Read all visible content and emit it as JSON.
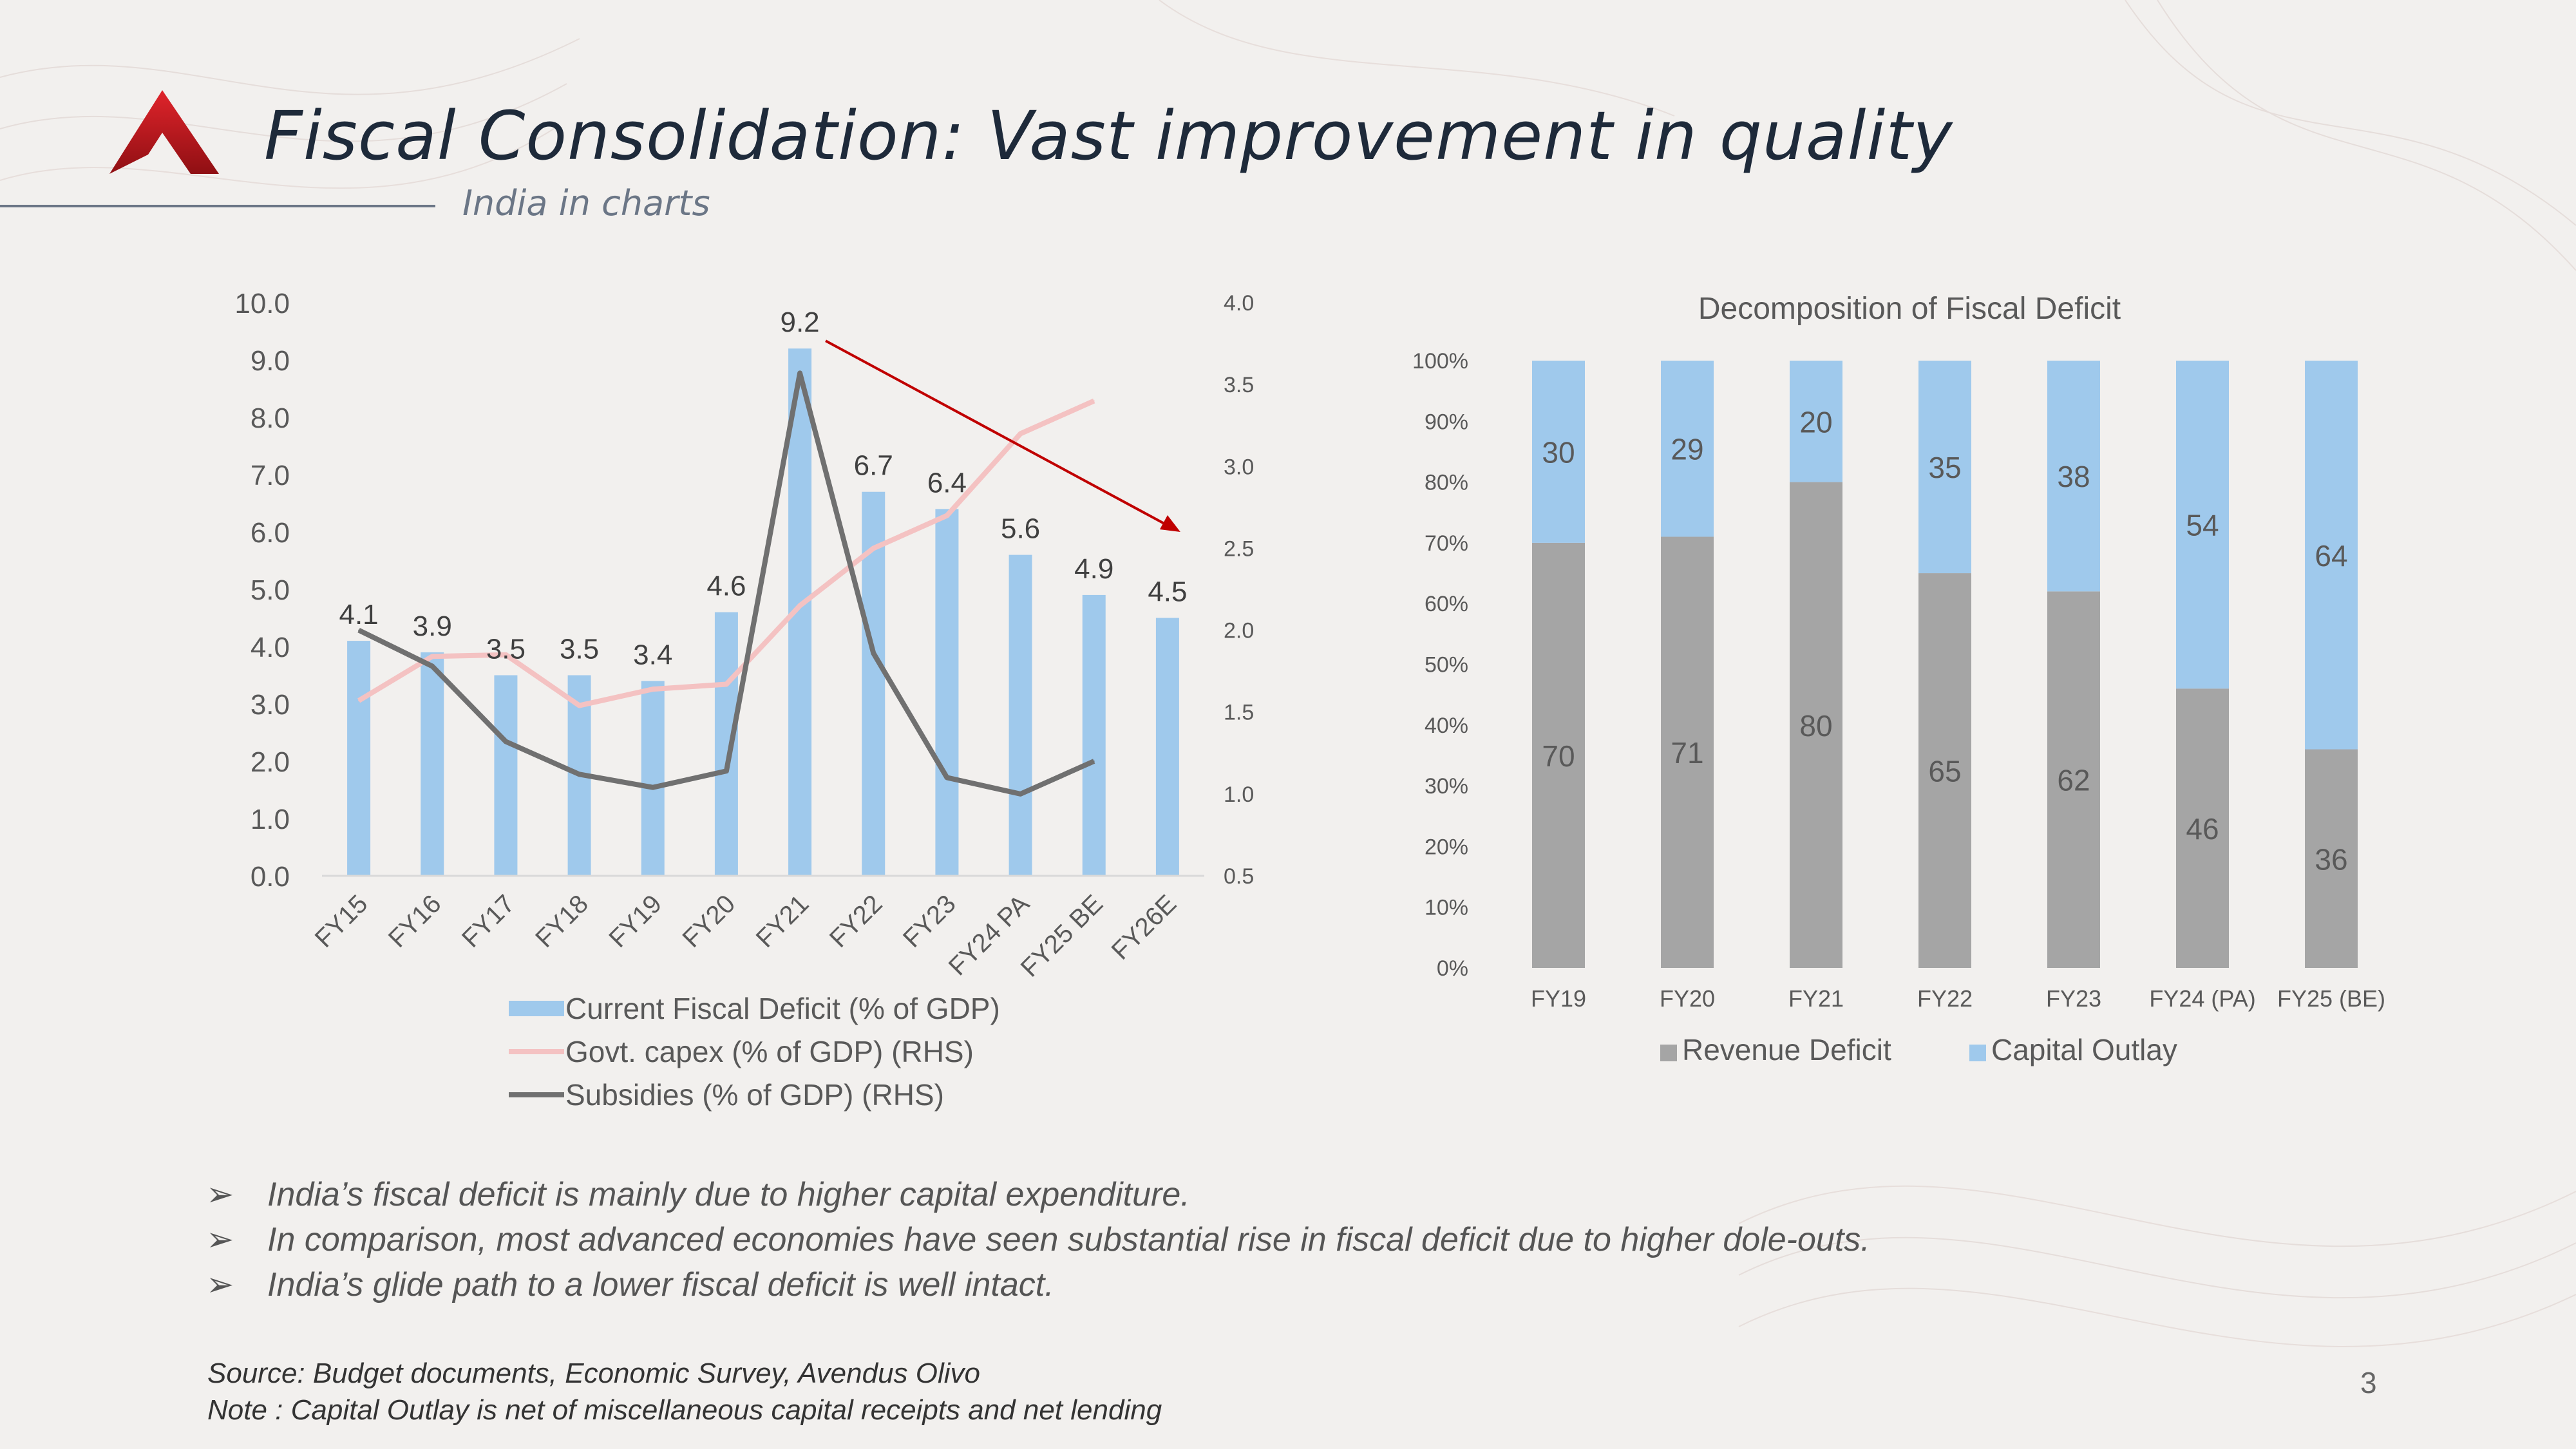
{
  "header": {
    "title": "Fiscal Consolidation: Vast improvement in quality",
    "subtitle": "India in charts"
  },
  "colors": {
    "brand_red": "#c0161c",
    "bar_blue": "#9fc9ec",
    "capex_pink": "#f4c2c2",
    "subsidy_gray": "#707070",
    "revenue_gray": "#a5a5a5",
    "arrow_red": "#c00000"
  },
  "chart_data": [
    {
      "type": "bar",
      "categories": [
        "FY15",
        "FY16",
        "FY17",
        "FY18",
        "FY19",
        "FY20",
        "FY21",
        "FY22",
        "FY23",
        "FY24 PA",
        "FY25 BE",
        "FY26E"
      ],
      "series": [
        {
          "name": "Current Fiscal Deficit (% of GDP)",
          "type": "bar",
          "axis": "left",
          "values": [
            4.1,
            3.9,
            3.5,
            3.5,
            3.4,
            4.6,
            9.2,
            6.7,
            6.4,
            5.6,
            4.9,
            4.5
          ],
          "labels": [
            "4.1",
            "3.9",
            "3.5",
            "3.5",
            "3.4",
            "4.6",
            "9.2",
            "6.7",
            "6.4",
            "5.6",
            "4.9",
            "4.5"
          ]
        },
        {
          "name": "Govt. capex (% of GDP) (RHS)",
          "type": "line",
          "axis": "right",
          "values": [
            1.57,
            1.84,
            1.85,
            1.54,
            1.64,
            1.67,
            2.15,
            2.5,
            2.7,
            3.2,
            3.4,
            null
          ]
        },
        {
          "name": "Subsidies (% of GDP) (RHS)",
          "type": "line",
          "axis": "right",
          "values": [
            2.0,
            1.78,
            1.32,
            1.12,
            1.04,
            1.14,
            3.57,
            1.86,
            1.1,
            1.0,
            1.2,
            null
          ]
        }
      ],
      "yleft": {
        "ylim": [
          0,
          10
        ],
        "ticks": [
          "0.0",
          "1.0",
          "2.0",
          "3.0",
          "4.0",
          "5.0",
          "6.0",
          "7.0",
          "8.0",
          "9.0",
          "10.0"
        ]
      },
      "yright": {
        "ylim": [
          0.5,
          4.0
        ],
        "ticks": [
          "0.5",
          "1.0",
          "1.5",
          "2.0",
          "2.5",
          "3.0",
          "3.5",
          "4.0"
        ]
      },
      "annotations": [
        {
          "type": "arrow",
          "from": {
            "category": "FY21",
            "value": 9.2
          },
          "to": {
            "category": "FY26E",
            "value": 6.0
          }
        }
      ],
      "grid": false,
      "legend": "bottom"
    },
    {
      "type": "bar",
      "stacked": "100%",
      "title": "Decomposition of Fiscal Deficit",
      "categories": [
        "FY19",
        "FY20",
        "FY21",
        "FY22",
        "FY23",
        "FY24 (PA)",
        "FY25 (BE)"
      ],
      "series": [
        {
          "name": "Revenue Deficit",
          "values": [
            70,
            71,
            80,
            65,
            62,
            46,
            36
          ]
        },
        {
          "name": "Capital Outlay",
          "values": [
            30,
            29,
            20,
            35,
            38,
            54,
            64
          ]
        }
      ],
      "yticks": [
        "0%",
        "10%",
        "20%",
        "30%",
        "40%",
        "50%",
        "60%",
        "70%",
        "80%",
        "90%",
        "100%"
      ],
      "ylim": [
        0,
        100
      ],
      "grid": false,
      "legend": "bottom"
    }
  ],
  "bullets": [
    "India’s fiscal deficit is mainly due to higher capital expenditure.",
    "In comparison, most advanced economies have seen substantial rise in fiscal deficit due to higher dole-outs.",
    "India’s glide path to a lower fiscal deficit is well intact."
  ],
  "bullet_marker": "➢",
  "footer": {
    "source": "Source: Budget documents, Economic Survey, Avendus Olivo",
    "note": "Note : Capital Outlay is net of  miscellaneous capital receipts and net lending",
    "page": "3"
  }
}
